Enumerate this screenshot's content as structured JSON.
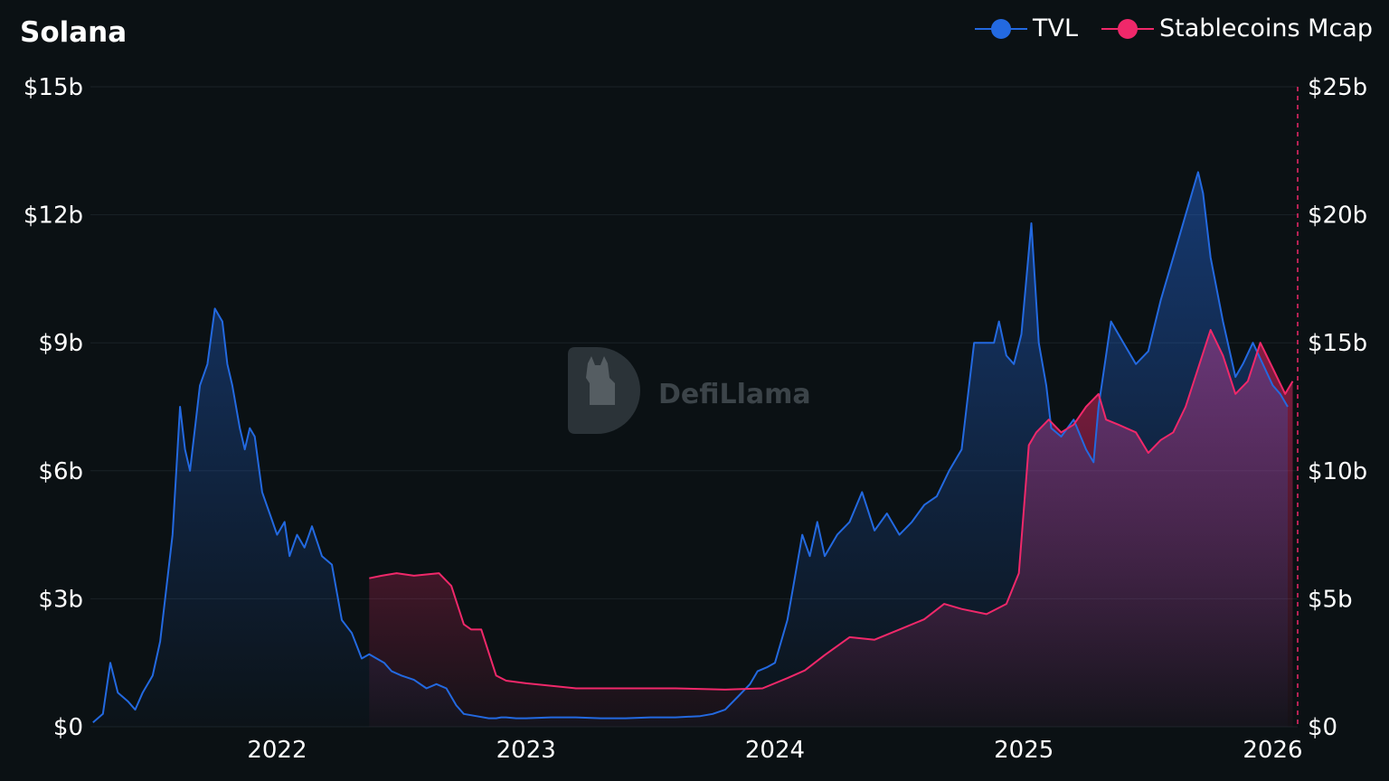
{
  "chart_data": {
    "type": "area",
    "title": "Solana",
    "legend_position": "top-right",
    "grid": true,
    "watermark": "DefiLlama",
    "x_axis": {
      "range": [
        2021.25,
        2026.1
      ],
      "ticks": [
        2022,
        2023,
        2024,
        2025,
        2026
      ],
      "tick_labels": [
        "2022",
        "2023",
        "2024",
        "2025",
        "2026"
      ]
    },
    "y_left": {
      "range": [
        0,
        15
      ],
      "ticks": [
        0,
        3,
        6,
        9,
        12,
        15
      ],
      "tick_labels": [
        "$0",
        "$3b",
        "$6b",
        "$9b",
        "$12b",
        "$15b"
      ]
    },
    "y_right": {
      "range": [
        0,
        25
      ],
      "ticks": [
        0,
        5,
        10,
        15,
        20,
        25
      ],
      "tick_labels": [
        "$0",
        "$5b",
        "$10b",
        "$15b",
        "$20b",
        "$25b"
      ]
    },
    "series": [
      {
        "name": "TVL",
        "axis": "left",
        "color": "#2369e0",
        "x": [
          2021.26,
          2021.3,
          2021.33,
          2021.36,
          2021.4,
          2021.43,
          2021.46,
          2021.5,
          2021.53,
          2021.55,
          2021.58,
          2021.61,
          2021.63,
          2021.65,
          2021.67,
          2021.69,
          2021.72,
          2021.75,
          2021.78,
          2021.8,
          2021.82,
          2021.85,
          2021.87,
          2021.89,
          2021.91,
          2021.94,
          2021.97,
          2022.0,
          2022.03,
          2022.05,
          2022.08,
          2022.11,
          2022.14,
          2022.18,
          2022.22,
          2022.26,
          2022.3,
          2022.34,
          2022.37,
          2022.4,
          2022.43,
          2022.46,
          2022.5,
          2022.55,
          2022.6,
          2022.64,
          2022.68,
          2022.72,
          2022.75,
          2022.8,
          2022.85,
          2022.88,
          2022.9,
          2022.92,
          2022.96,
          2023.0,
          2023.1,
          2023.2,
          2023.3,
          2023.4,
          2023.5,
          2023.6,
          2023.7,
          2023.75,
          2023.8,
          2023.85,
          2023.9,
          2023.93,
          2023.97,
          2024.0,
          2024.05,
          2024.08,
          2024.11,
          2024.14,
          2024.17,
          2024.2,
          2024.25,
          2024.3,
          2024.35,
          2024.4,
          2024.45,
          2024.5,
          2024.55,
          2024.6,
          2024.65,
          2024.7,
          2024.75,
          2024.8,
          2024.85,
          2024.88,
          2024.9,
          2024.93,
          2024.96,
          2024.99,
          2025.01,
          2025.03,
          2025.06,
          2025.09,
          2025.11,
          2025.15,
          2025.2,
          2025.25,
          2025.28,
          2025.3,
          2025.35,
          2025.4,
          2025.45,
          2025.5,
          2025.55,
          2025.6,
          2025.65,
          2025.7,
          2025.72,
          2025.75,
          2025.8,
          2025.85,
          2025.88,
          2025.92,
          2025.96,
          2026.0,
          2026.03,
          2026.06
        ],
        "values": [
          0.1,
          0.3,
          1.5,
          0.8,
          0.6,
          0.4,
          0.8,
          1.2,
          2.0,
          3.0,
          4.5,
          7.5,
          6.5,
          6.0,
          7.0,
          8.0,
          8.5,
          9.8,
          9.5,
          8.5,
          8.0,
          7.0,
          6.5,
          7.0,
          6.8,
          5.5,
          5.0,
          4.5,
          4.8,
          4.0,
          4.5,
          4.2,
          4.7,
          4.0,
          3.8,
          2.5,
          2.2,
          1.6,
          1.7,
          1.6,
          1.5,
          1.3,
          1.2,
          1.1,
          0.9,
          1.0,
          0.9,
          0.5,
          0.3,
          0.25,
          0.2,
          0.2,
          0.22,
          0.22,
          0.2,
          0.2,
          0.22,
          0.22,
          0.2,
          0.2,
          0.22,
          0.22,
          0.25,
          0.3,
          0.4,
          0.7,
          1.0,
          1.3,
          1.4,
          1.5,
          2.5,
          3.5,
          4.5,
          4.0,
          4.8,
          4.0,
          4.5,
          4.8,
          5.5,
          4.6,
          5.0,
          4.5,
          4.8,
          5.2,
          5.4,
          6.0,
          6.5,
          9.0,
          9.0,
          9.0,
          9.5,
          8.7,
          8.5,
          9.2,
          10.5,
          11.8,
          9.0,
          8.0,
          7.0,
          6.8,
          7.2,
          6.5,
          6.2,
          7.5,
          9.5,
          9.0,
          8.5,
          8.8,
          10.0,
          11.0,
          12.0,
          13.0,
          12.5,
          11.0,
          9.5,
          8.2,
          8.5,
          9.0,
          8.5,
          8.0,
          7.8,
          7.5
        ]
      },
      {
        "name": "Stablecoins Mcap",
        "axis": "right",
        "color": "#f0286a",
        "x": [
          2022.37,
          2022.42,
          2022.48,
          2022.55,
          2022.65,
          2022.7,
          2022.75,
          2022.78,
          2022.82,
          2022.88,
          2022.92,
          2023.0,
          2023.2,
          2023.4,
          2023.6,
          2023.8,
          2023.95,
          2024.05,
          2024.12,
          2024.2,
          2024.3,
          2024.4,
          2024.5,
          2024.6,
          2024.68,
          2024.75,
          2024.85,
          2024.93,
          2024.98,
          2025.02,
          2025.05,
          2025.1,
          2025.15,
          2025.2,
          2025.25,
          2025.3,
          2025.33,
          2025.38,
          2025.45,
          2025.5,
          2025.55,
          2025.6,
          2025.65,
          2025.7,
          2025.75,
          2025.8,
          2025.85,
          2025.9,
          2025.95,
          2026.0,
          2026.05,
          2026.08
        ],
        "values": [
          5.8,
          5.9,
          6.0,
          5.9,
          6.0,
          5.5,
          4.0,
          3.8,
          3.8,
          2.0,
          1.8,
          1.7,
          1.5,
          1.5,
          1.5,
          1.45,
          1.5,
          1.9,
          2.2,
          2.8,
          3.5,
          3.4,
          3.8,
          4.2,
          4.8,
          4.6,
          4.4,
          4.8,
          6.0,
          11.0,
          11.5,
          12.0,
          11.5,
          11.8,
          12.5,
          13.0,
          12.0,
          11.8,
          11.5,
          10.7,
          11.2,
          11.5,
          12.5,
          14.0,
          15.5,
          14.5,
          13.0,
          13.5,
          15.0,
          14.0,
          13.0,
          13.5
        ]
      }
    ]
  }
}
